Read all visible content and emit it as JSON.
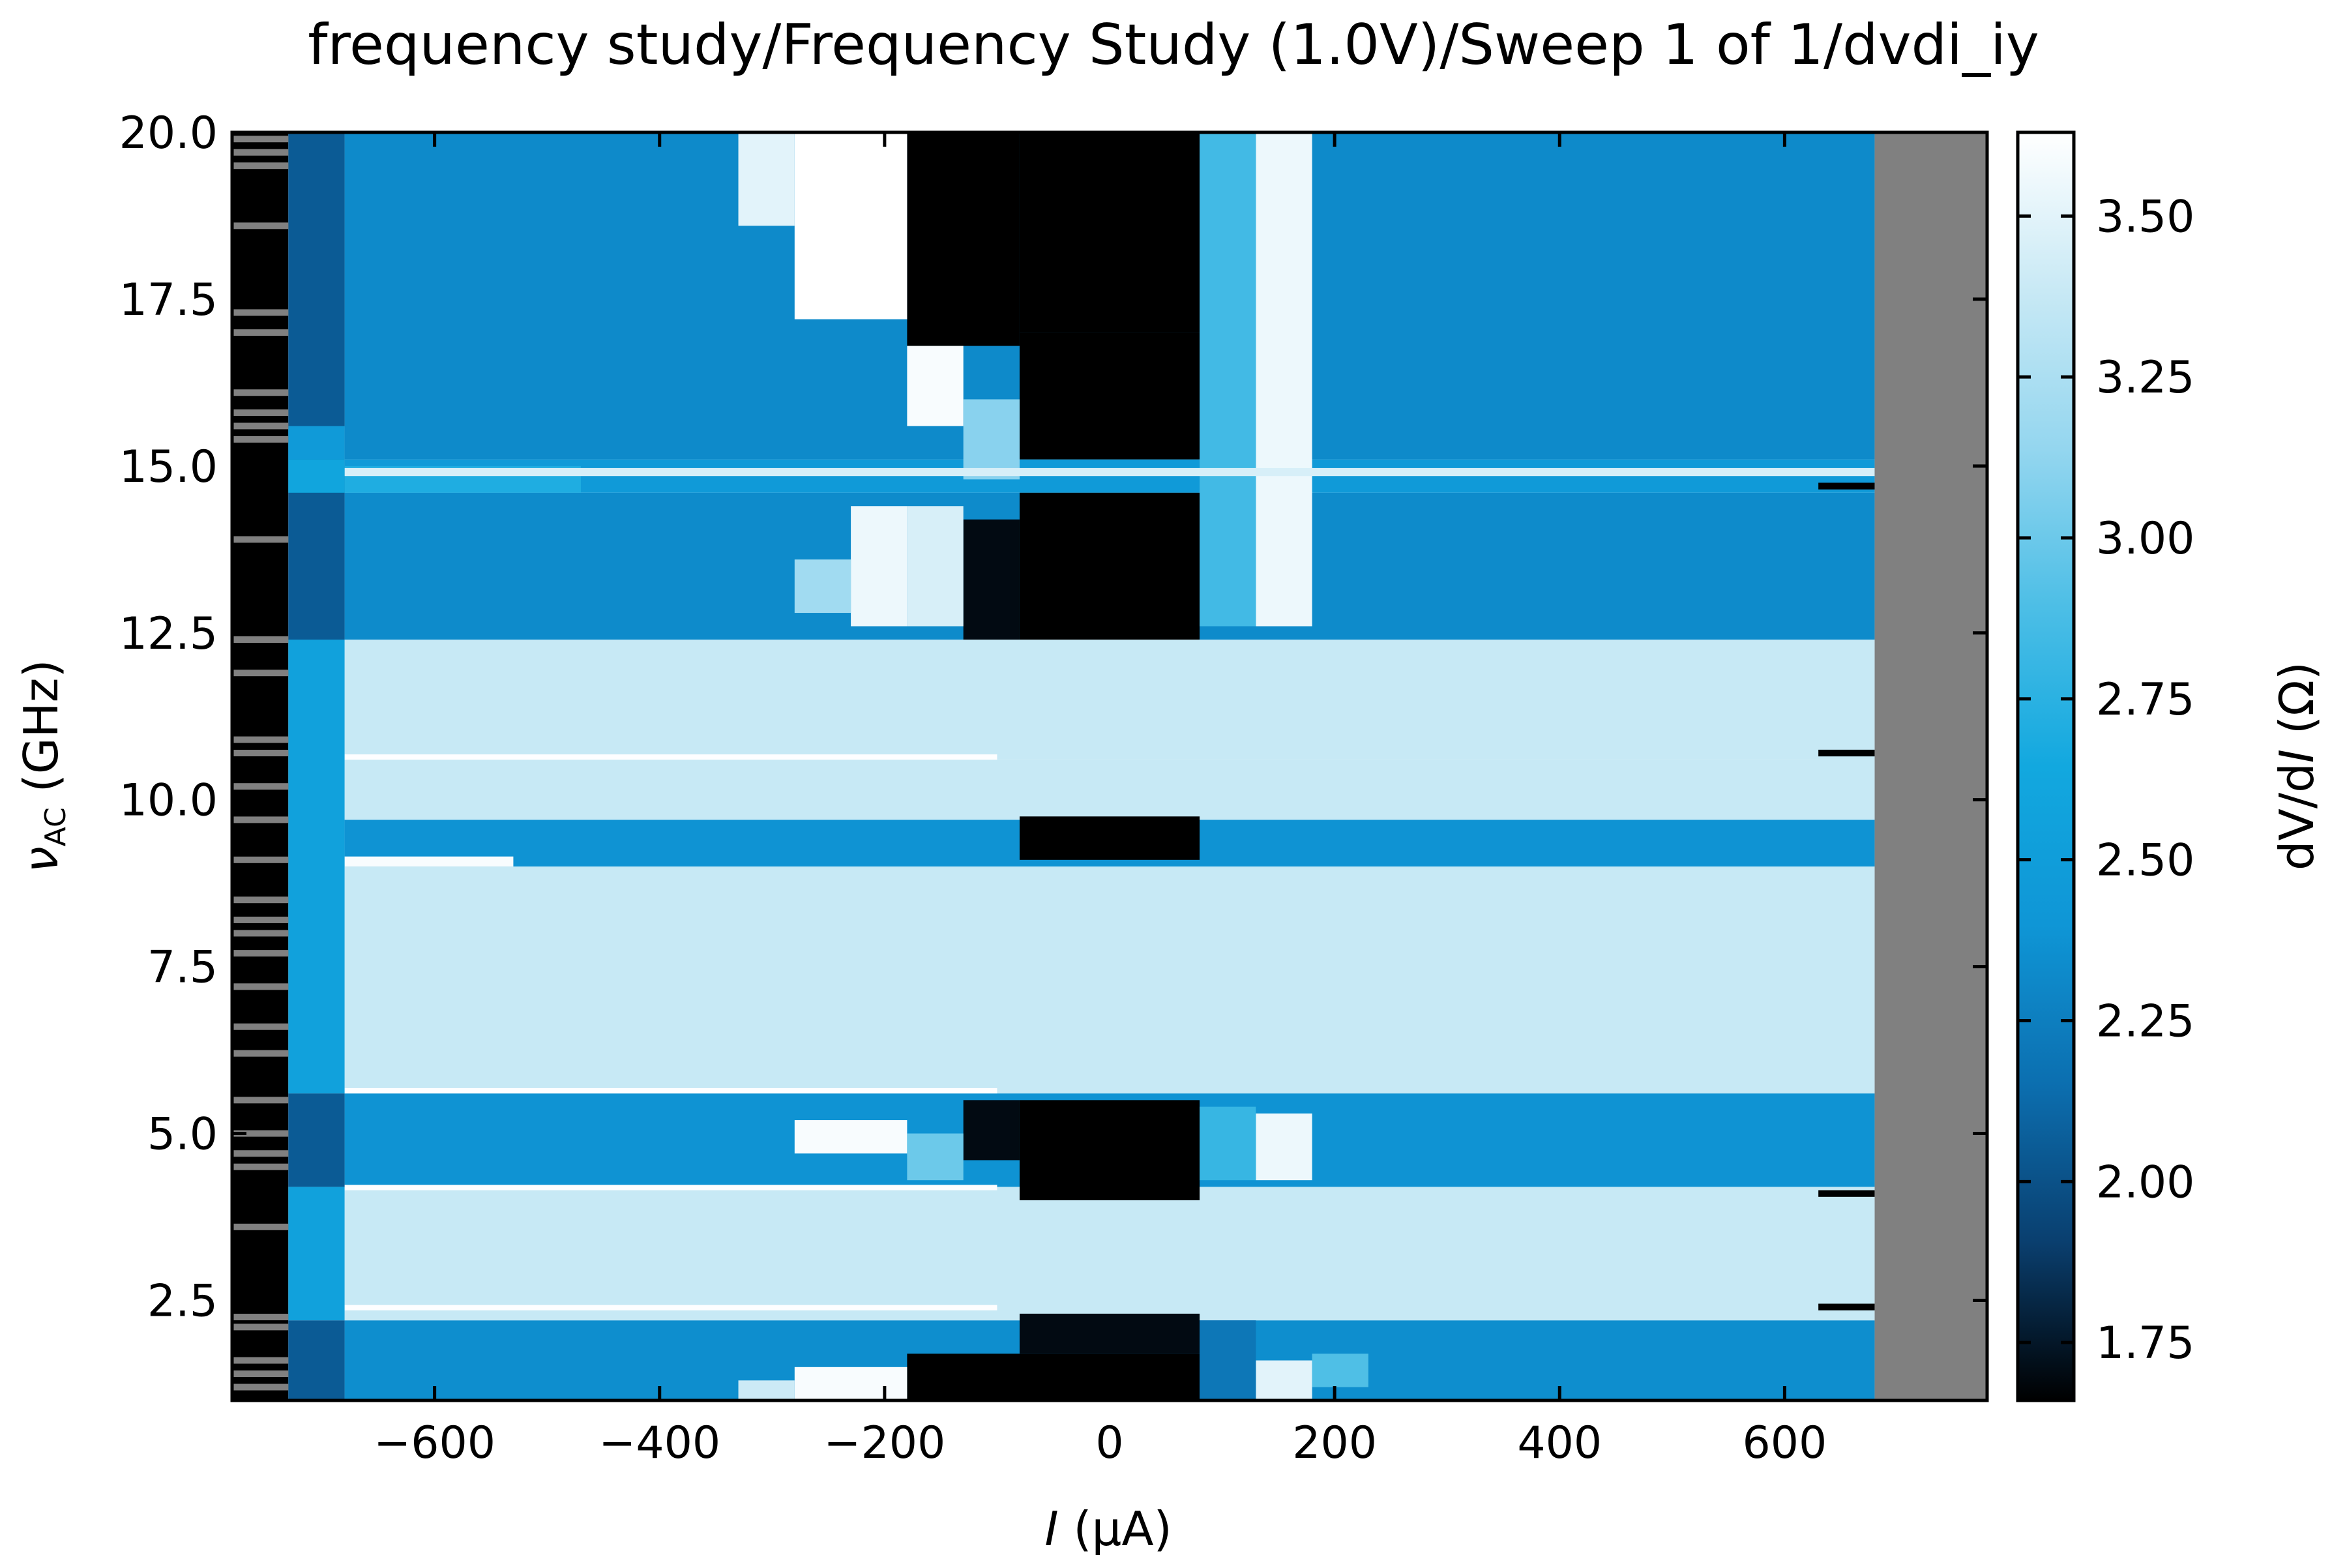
{
  "chart_data": {
    "type": "heatmap",
    "title": "frequency study/Frequency Study (1.0V)/Sweep 1 of 1/dvdi_iy",
    "xlabel": {
      "symbol": "I",
      "unit": " (μA)"
    },
    "ylabel": {
      "symbol": "ν",
      "subscript": "AC",
      "unit": " (GHz)"
    },
    "colorbar_label": {
      "prefix": "dV/d",
      "symbol": "I",
      "unit": " (Ω)"
    },
    "x_range": [
      -780,
      780
    ],
    "y_range": [
      1.0,
      20.0
    ],
    "data_x_range": [
      -680,
      680
    ],
    "x_ticks": [
      -600,
      -400,
      -200,
      0,
      200,
      400,
      600
    ],
    "x_tick_labels": [
      "−600",
      "−400",
      "−200",
      "0",
      "200",
      "400",
      "600"
    ],
    "y_ticks": [
      2.5,
      5.0,
      7.5,
      10.0,
      12.5,
      15.0,
      17.5,
      20.0
    ],
    "y_tick_labels": [
      "2.5",
      "5.0",
      "7.5",
      "10.0",
      "12.5",
      "15.0",
      "17.5",
      "20.0"
    ],
    "colorbar_range": [
      1.66,
      3.63
    ],
    "colorbar_ticks": [
      1.75,
      2.0,
      2.25,
      2.5,
      2.75,
      3.0,
      3.25,
      3.5
    ],
    "colorbar_tick_labels": [
      "1.75",
      "2.00",
      "2.25",
      "2.50",
      "2.75",
      "3.00",
      "3.25",
      "3.50"
    ],
    "colormap": [
      "#000000",
      "#0a3f6f",
      "#0c6fb0",
      "#0f96d6",
      "#12a8df",
      "#4cbee6",
      "#94d6ef",
      "#c8e9f5",
      "#ffffff"
    ],
    "missing_color": "#808080",
    "bands": [
      {
        "y": [
          1.0,
          2.2
        ],
        "v": 2.35
      },
      {
        "y": [
          2.2,
          4.2
        ],
        "v": 3.38
      },
      {
        "y": [
          4.2,
          5.6
        ],
        "v": 2.38
      },
      {
        "y": [
          5.6,
          9.0
        ],
        "v": 3.38
      },
      {
        "y": [
          9.0,
          9.7
        ],
        "v": 2.38
      },
      {
        "y": [
          9.7,
          10.6
        ],
        "v": 3.38
      },
      {
        "y": [
          10.6,
          12.4
        ],
        "v": 3.38
      },
      {
        "y": [
          12.4,
          14.6
        ],
        "v": 2.33
      },
      {
        "y": [
          14.6,
          15.1
        ],
        "v": 2.45
      },
      {
        "y": [
          15.1,
          20.0
        ],
        "v": 2.32
      }
    ],
    "features": [
      {
        "x": [
          -80,
          80
        ],
        "y": [
          17.0,
          20.0
        ],
        "v": 1.66
      },
      {
        "x": [
          -180,
          -80
        ],
        "y": [
          16.8,
          20.0
        ],
        "v": 1.66
      },
      {
        "x": [
          -80,
          80
        ],
        "y": [
          15.1,
          17.0
        ],
        "v": 1.66
      },
      {
        "x": [
          -80,
          80
        ],
        "y": [
          12.4,
          14.6
        ],
        "v": 1.66
      },
      {
        "x": [
          -130,
          -80
        ],
        "y": [
          12.4,
          14.2
        ],
        "v": 1.7
      },
      {
        "x": [
          -80,
          80
        ],
        "y": [
          9.1,
          9.75
        ],
        "v": 1.66
      },
      {
        "x": [
          -80,
          80
        ],
        "y": [
          4.0,
          5.5
        ],
        "v": 1.66
      },
      {
        "x": [
          -130,
          -80
        ],
        "y": [
          4.6,
          5.5
        ],
        "v": 1.7
      },
      {
        "x": [
          -180,
          80
        ],
        "y": [
          1.0,
          1.7
        ],
        "v": 1.66
      },
      {
        "x": [
          -80,
          80
        ],
        "y": [
          1.7,
          2.3
        ],
        "v": 1.7
      },
      {
        "x": [
          -280,
          -180
        ],
        "y": [
          17.2,
          20.0
        ],
        "v": 3.63
      },
      {
        "x": [
          -330,
          -280
        ],
        "y": [
          18.6,
          20.0
        ],
        "v": 3.5
      },
      {
        "x": [
          -180,
          -130
        ],
        "y": [
          15.6,
          16.8
        ],
        "v": 3.6
      },
      {
        "x": [
          -130,
          -80
        ],
        "y": [
          14.8,
          16.0
        ],
        "v": 3.1
      },
      {
        "x": [
          -230,
          -180
        ],
        "y": [
          12.6,
          14.4
        ],
        "v": 3.55
      },
      {
        "x": [
          -180,
          -130
        ],
        "y": [
          12.6,
          14.4
        ],
        "v": 3.45
      },
      {
        "x": [
          -280,
          -230
        ],
        "y": [
          12.8,
          13.6
        ],
        "v": 3.2
      },
      {
        "x": [
          -280,
          -180
        ],
        "y": [
          4.7,
          5.2
        ],
        "v": 3.6
      },
      {
        "x": [
          -180,
          -130
        ],
        "y": [
          4.3,
          5.0
        ],
        "v": 3.0
      },
      {
        "x": [
          -280,
          -180
        ],
        "y": [
          1.0,
          1.5
        ],
        "v": 3.6
      },
      {
        "x": [
          -330,
          -280
        ],
        "y": [
          1.0,
          1.3
        ],
        "v": 3.4
      },
      {
        "x": [
          130,
          180
        ],
        "y": [
          12.6,
          20.0
        ],
        "v": 3.55
      },
      {
        "x": [
          80,
          130
        ],
        "y": [
          12.6,
          20.0
        ],
        "v": 2.85
      },
      {
        "x": [
          130,
          180
        ],
        "y": [
          4.3,
          5.3
        ],
        "v": 3.55
      },
      {
        "x": [
          80,
          130
        ],
        "y": [
          4.3,
          5.4
        ],
        "v": 2.8
      },
      {
        "x": [
          130,
          180
        ],
        "y": [
          1.0,
          1.6
        ],
        "v": 3.5
      },
      {
        "x": [
          80,
          130
        ],
        "y": [
          1.0,
          2.2
        ],
        "v": 2.2
      },
      {
        "x": [
          180,
          230
        ],
        "y": [
          1.2,
          1.7
        ],
        "v": 2.9
      },
      {
        "x": [
          -680,
          -470
        ],
        "y": [
          14.6,
          15.0
        ],
        "v": 2.7
      },
      {
        "x": [
          -680,
          -530
        ],
        "y": [
          9.0,
          9.15
        ],
        "v": 3.6
      },
      {
        "x": [
          -680,
          680
        ],
        "y": [
          14.85,
          14.97
        ],
        "v": 3.45
      },
      {
        "x": [
          -680,
          -100
        ],
        "y": [
          10.6,
          10.68
        ],
        "v": 3.62
      },
      {
        "x": [
          -680,
          -100
        ],
        "y": [
          5.6,
          5.68
        ],
        "v": 3.62
      },
      {
        "x": [
          -680,
          -100
        ],
        "y": [
          4.15,
          4.23
        ],
        "v": 3.62
      },
      {
        "x": [
          -680,
          -100
        ],
        "y": [
          2.35,
          2.43
        ],
        "v": 3.62
      },
      {
        "x": [
          630,
          680
        ],
        "y": [
          14.65,
          14.75
        ],
        "v": 1.66
      },
      {
        "x": [
          630,
          680
        ],
        "y": [
          10.65,
          10.75
        ],
        "v": 1.66
      },
      {
        "x": [
          630,
          680
        ],
        "y": [
          4.05,
          4.15
        ],
        "v": 1.66
      },
      {
        "x": [
          630,
          680
        ],
        "y": [
          2.35,
          2.45
        ],
        "v": 1.66
      },
      {
        "x": [
          -780,
          -730
        ],
        "y": [
          1.0,
          20.0
        ],
        "v": 1.66
      },
      {
        "x": [
          -730,
          -680
        ],
        "y": [
          12.4,
          20.0
        ],
        "v": 2.05
      },
      {
        "x": [
          -730,
          -680
        ],
        "y": [
          4.2,
          5.6
        ],
        "v": 2.05
      },
      {
        "x": [
          -730,
          -680
        ],
        "y": [
          1.0,
          2.2
        ],
        "v": 2.05
      },
      {
        "x": [
          -730,
          -680
        ],
        "y": [
          2.2,
          4.2
        ],
        "v": 2.55
      },
      {
        "x": [
          -730,
          -680
        ],
        "y": [
          5.6,
          12.4
        ],
        "v": 2.55
      },
      {
        "x": [
          -730,
          -680
        ],
        "y": [
          14.6,
          15.1
        ],
        "v": 2.6
      },
      {
        "x": [
          -730,
          -680
        ],
        "y": [
          15.1,
          15.6
        ],
        "v": 2.45
      }
    ],
    "missing_lines": [
      1.2,
      1.4,
      1.6,
      2.1,
      2.25,
      3.6,
      4.5,
      4.7,
      5.0,
      5.5,
      6.2,
      6.6,
      7.2,
      7.7,
      8.0,
      8.2,
      8.5,
      9.1,
      9.7,
      10.2,
      10.7,
      10.9,
      11.9,
      12.4,
      13.9,
      15.4,
      15.6,
      15.8,
      16.1,
      17.0,
      17.3,
      18.6,
      19.5,
      19.7,
      19.9
    ]
  }
}
